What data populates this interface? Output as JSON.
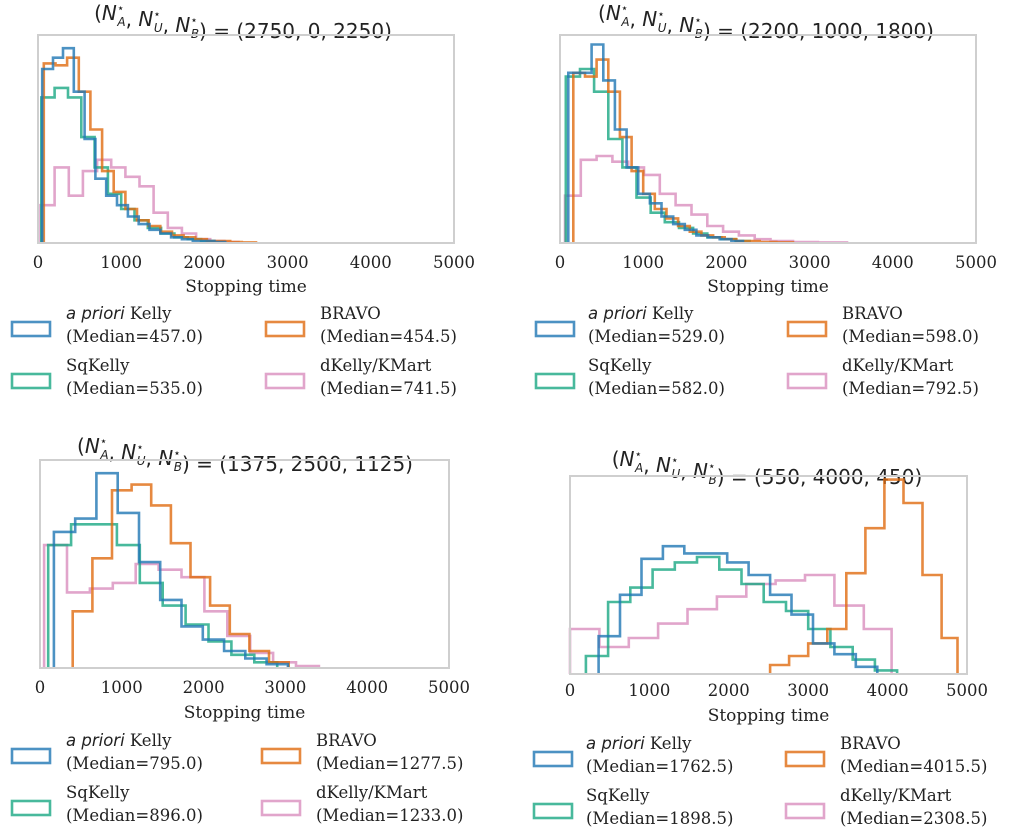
{
  "colors": {
    "apriori": "#1f77b4",
    "bravo": "#e06c10",
    "sqkelly": "#1aa883",
    "dkelly": "#d98fbe"
  },
  "chart_data": [
    {
      "type": "histogram",
      "title_values": "(2750, 0, 2250)",
      "xlabel": "Stopping time",
      "xlim": [
        0,
        5000
      ],
      "xticks": [
        0,
        1000,
        2000,
        3000,
        4000,
        5000
      ],
      "ymax": 1.1,
      "series": [
        {
          "key": "apriori",
          "name_italic": "a priori",
          "name": " Kelly",
          "median_label": "(Median=457.0)",
          "edges": [
            50,
            180,
            300,
            430,
            560,
            690,
            820,
            950,
            1080,
            1210,
            1340,
            1470,
            1600,
            1730,
            1860,
            1990,
            2120,
            2250
          ],
          "heights": [
            0.92,
            0.98,
            1.03,
            0.8,
            0.55,
            0.34,
            0.25,
            0.2,
            0.14,
            0.1,
            0.07,
            0.05,
            0.03,
            0.02,
            0.01,
            0.01,
            0.005
          ]
        },
        {
          "key": "bravo",
          "name": "BRAVO",
          "median_label": "(Median=454.5)",
          "edges": [
            70,
            210,
            350,
            490,
            630,
            770,
            910,
            1050,
            1190,
            1330,
            1470,
            1610,
            1750,
            1890,
            2030,
            2170,
            2310,
            2450,
            2620
          ],
          "heights": [
            0.95,
            0.94,
            0.98,
            0.8,
            0.6,
            0.38,
            0.27,
            0.18,
            0.12,
            0.09,
            0.06,
            0.04,
            0.03,
            0.02,
            0.01,
            0.01,
            0.005,
            0.003
          ]
        },
        {
          "key": "sqkelly",
          "name": "SqKelly",
          "median_label": "(Median=535.0)",
          "edges": [
            40,
            200,
            360,
            520,
            680,
            840,
            1000,
            1160,
            1320,
            1480,
            1640,
            1800,
            1960,
            2120
          ],
          "heights": [
            0.77,
            0.82,
            0.77,
            0.56,
            0.4,
            0.26,
            0.18,
            0.12,
            0.08,
            0.05,
            0.03,
            0.02,
            0.01
          ]
        },
        {
          "key": "dkelly",
          "name": "dKelly/KMart",
          "median_label": "(Median=741.5)",
          "edges": [
            30,
            200,
            370,
            540,
            710,
            880,
            1050,
            1220,
            1390,
            1560,
            1730,
            1900,
            2070,
            2240,
            2410
          ],
          "heights": [
            0.2,
            0.4,
            0.25,
            0.38,
            0.44,
            0.4,
            0.35,
            0.3,
            0.16,
            0.08,
            0.05,
            0.02,
            0.01,
            0.005
          ]
        }
      ]
    },
    {
      "type": "histogram",
      "title_values": "(2200, 1000, 1800)",
      "xlabel": "Stopping time",
      "xlim": [
        0,
        5000
      ],
      "xticks": [
        0,
        1000,
        2000,
        3000,
        4000,
        5000
      ],
      "ymax": 1.1,
      "series": [
        {
          "key": "apriori",
          "name_italic": "a priori",
          "name": " Kelly",
          "median_label": "(Median=529.0)",
          "edges": [
            100,
            240,
            380,
            520,
            660,
            800,
            940,
            1080,
            1220,
            1360,
            1500,
            1640,
            1780,
            1920,
            2060,
            2200
          ],
          "heights": [
            0.9,
            0.9,
            1.05,
            0.86,
            0.6,
            0.4,
            0.26,
            0.21,
            0.14,
            0.1,
            0.07,
            0.04,
            0.03,
            0.02,
            0.01
          ]
        },
        {
          "key": "bravo",
          "name": "BRAVO",
          "median_label": "(Median=598.0)",
          "edges": [
            160,
            300,
            440,
            580,
            720,
            860,
            1000,
            1140,
            1280,
            1420,
            1560,
            1700,
            1840,
            1980,
            2120,
            2260,
            2400,
            2600,
            2800
          ],
          "heights": [
            0.9,
            0.88,
            0.97,
            0.8,
            0.56,
            0.38,
            0.26,
            0.18,
            0.13,
            0.09,
            0.06,
            0.04,
            0.03,
            0.02,
            0.01,
            0.01,
            0.005,
            0.003
          ]
        },
        {
          "key": "sqkelly",
          "name": "SqKelly",
          "median_label": "(Median=582.0)",
          "edges": [
            70,
            240,
            410,
            580,
            750,
            920,
            1090,
            1260,
            1430,
            1600,
            1770,
            1940,
            2110,
            2280
          ],
          "heights": [
            0.88,
            0.92,
            0.8,
            0.55,
            0.4,
            0.24,
            0.16,
            0.11,
            0.08,
            0.05,
            0.03,
            0.02,
            0.01
          ]
        },
        {
          "key": "dkelly",
          "name": "dKelly/KMart",
          "median_label": "(Median=792.5)",
          "edges": [
            60,
            250,
            440,
            630,
            820,
            1010,
            1200,
            1390,
            1580,
            1770,
            1960,
            2150,
            2340,
            2530,
            2800,
            3100,
            3450
          ],
          "heights": [
            0.25,
            0.44,
            0.46,
            0.43,
            0.4,
            0.36,
            0.26,
            0.2,
            0.15,
            0.09,
            0.06,
            0.04,
            0.02,
            0.01,
            0.005,
            0.003
          ]
        }
      ]
    },
    {
      "type": "histogram",
      "title_values": "(1375, 2500, 1125)",
      "xlabel": "Stopping time",
      "xlim": [
        0,
        5000
      ],
      "xticks": [
        0,
        1000,
        2000,
        3000,
        4000,
        5000
      ],
      "ymax": 1.1,
      "series": [
        {
          "key": "apriori",
          "name_italic": "a priori",
          "name": " Kelly",
          "median_label": "(Median=795.0)",
          "edges": [
            170,
            430,
            690,
            950,
            1210,
            1470,
            1730,
            1990,
            2250,
            2510,
            2770,
            3030
          ],
          "heights": [
            0.72,
            0.79,
            1.03,
            0.82,
            0.56,
            0.36,
            0.22,
            0.15,
            0.09,
            0.05,
            0.02
          ]
        },
        {
          "key": "bravo",
          "name": "BRAVO",
          "median_label": "(Median=1277.5)",
          "edges": [
            400,
            640,
            880,
            1120,
            1360,
            1600,
            1840,
            2080,
            2320,
            2560,
            2800,
            3040
          ],
          "heights": [
            0.3,
            0.58,
            0.94,
            0.97,
            0.86,
            0.66,
            0.48,
            0.33,
            0.18,
            0.09,
            0.03
          ]
        },
        {
          "key": "sqkelly",
          "name": "SqKelly",
          "median_label": "(Median=896.0)",
          "edges": [
            100,
            380,
            660,
            940,
            1220,
            1500,
            1780,
            2060,
            2340,
            2620,
            2900
          ],
          "heights": [
            0.65,
            0.76,
            0.76,
            0.65,
            0.45,
            0.33,
            0.23,
            0.14,
            0.07,
            0.03
          ]
        },
        {
          "key": "dkelly",
          "name": "dKelly/KMart",
          "median_label": "(Median=1233.0)",
          "edges": [
            50,
            330,
            610,
            890,
            1170,
            1450,
            1730,
            2010,
            2290,
            2570,
            2850,
            3130,
            3410
          ],
          "heights": [
            0.65,
            0.4,
            0.42,
            0.45,
            0.55,
            0.52,
            0.48,
            0.3,
            0.17,
            0.08,
            0.03,
            0.01
          ]
        }
      ]
    },
    {
      "type": "histogram",
      "title_values": "(550, 4000, 450)",
      "xlabel": "Stopping time",
      "xlim": [
        0,
        5000
      ],
      "xticks": [
        0,
        1000,
        2000,
        3000,
        4000,
        5000
      ],
      "ymax": 1.1,
      "series": [
        {
          "key": "apriori",
          "name_italic": "a priori",
          "name": " Kelly",
          "median_label": "(Median=1762.5)",
          "edges": [
            360,
            630,
            900,
            1170,
            1440,
            1710,
            1980,
            2250,
            2520,
            2790,
            3060,
            3330,
            3600,
            3870
          ],
          "heights": [
            0.21,
            0.44,
            0.64,
            0.71,
            0.67,
            0.67,
            0.62,
            0.55,
            0.44,
            0.33,
            0.17,
            0.11,
            0.04
          ]
        },
        {
          "key": "bravo",
          "name": "BRAVO",
          "median_label": "(Median=4015.5)",
          "edges": [
            2520,
            2760,
            3000,
            3240,
            3480,
            3720,
            3960,
            4200,
            4440,
            4680,
            4880
          ],
          "heights": [
            0.05,
            0.1,
            0.17,
            0.25,
            0.56,
            0.81,
            1.08,
            0.95,
            0.55,
            0.2
          ]
        },
        {
          "key": "sqkelly",
          "name": "SqKelly",
          "median_label": "(Median=1898.5)",
          "edges": [
            200,
            480,
            760,
            1040,
            1320,
            1600,
            1880,
            2160,
            2440,
            2720,
            3000,
            3280,
            3560,
            3840,
            4120
          ],
          "heights": [
            0.1,
            0.4,
            0.48,
            0.58,
            0.62,
            0.65,
            0.58,
            0.5,
            0.4,
            0.35,
            0.25,
            0.15,
            0.08,
            0.02
          ]
        },
        {
          "key": "dkelly",
          "name": "dKelly/KMart",
          "median_label": "(Median=2308.5)",
          "edges": [
            0,
            370,
            740,
            1110,
            1480,
            1850,
            2220,
            2590,
            2960,
            3330,
            3700,
            4050
          ],
          "heights": [
            0.25,
            0.15,
            0.2,
            0.28,
            0.36,
            0.43,
            0.5,
            0.52,
            0.55,
            0.38,
            0.25
          ]
        }
      ]
    }
  ]
}
